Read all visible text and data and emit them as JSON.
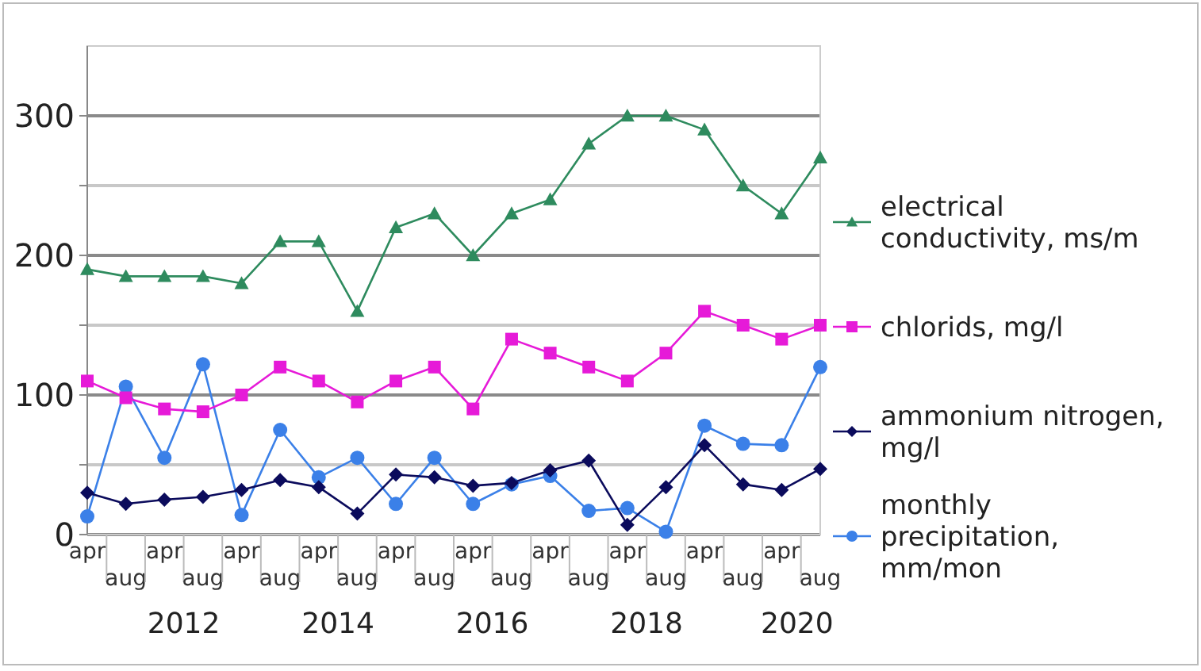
{
  "chart_data": {
    "type": "line",
    "categories": [
      "apr",
      "aug",
      "apr",
      "aug",
      "apr",
      "aug",
      "apr",
      "aug",
      "apr",
      "aug",
      "apr",
      "aug",
      "apr",
      "aug",
      "apr",
      "aug",
      "apr",
      "aug",
      "apr",
      "aug"
    ],
    "series": [
      {
        "name": "electrical conductivity, ms/m",
        "color": "#2e8b5e",
        "marker": "triangle",
        "values": [
          190,
          185,
          185,
          185,
          180,
          210,
          210,
          160,
          220,
          230,
          200,
          230,
          240,
          280,
          300,
          300,
          290,
          250,
          230,
          270
        ]
      },
      {
        "name": "chlorids, mg/l",
        "color": "#e61ad8",
        "marker": "square",
        "values": [
          110,
          98,
          90,
          88,
          100,
          120,
          110,
          95,
          110,
          120,
          90,
          140,
          130,
          120,
          110,
          130,
          160,
          150,
          140,
          150
        ]
      },
      {
        "name": "ammonium nitrogen, mg/l",
        "color": "#0b0b5c",
        "marker": "diamond",
        "values": [
          30,
          22,
          25,
          27,
          32,
          39,
          34,
          15,
          43,
          41,
          35,
          37,
          46,
          53,
          7,
          34,
          64,
          36,
          32,
          47
        ]
      },
      {
        "name": "monthly precipitation, mm/mon",
        "color": "#3b80e8",
        "marker": "circle",
        "values": [
          13,
          106,
          55,
          122,
          14,
          75,
          41,
          55,
          22,
          55,
          22,
          36,
          42,
          17,
          19,
          2,
          78,
          65,
          64,
          120
        ]
      }
    ],
    "annotations": [
      "2012",
      "2014",
      "2016",
      "2018",
      "2020"
    ],
    "ylim": [
      0,
      350
    ],
    "yticks": [
      0,
      {
        "value": 50,
        "label": null
      },
      100,
      {
        "value": 150,
        "label": null
      },
      200,
      {
        "value": 250,
        "label": null
      },
      300
    ],
    "grid": "y",
    "legend": "right",
    "line_style": "solid"
  }
}
